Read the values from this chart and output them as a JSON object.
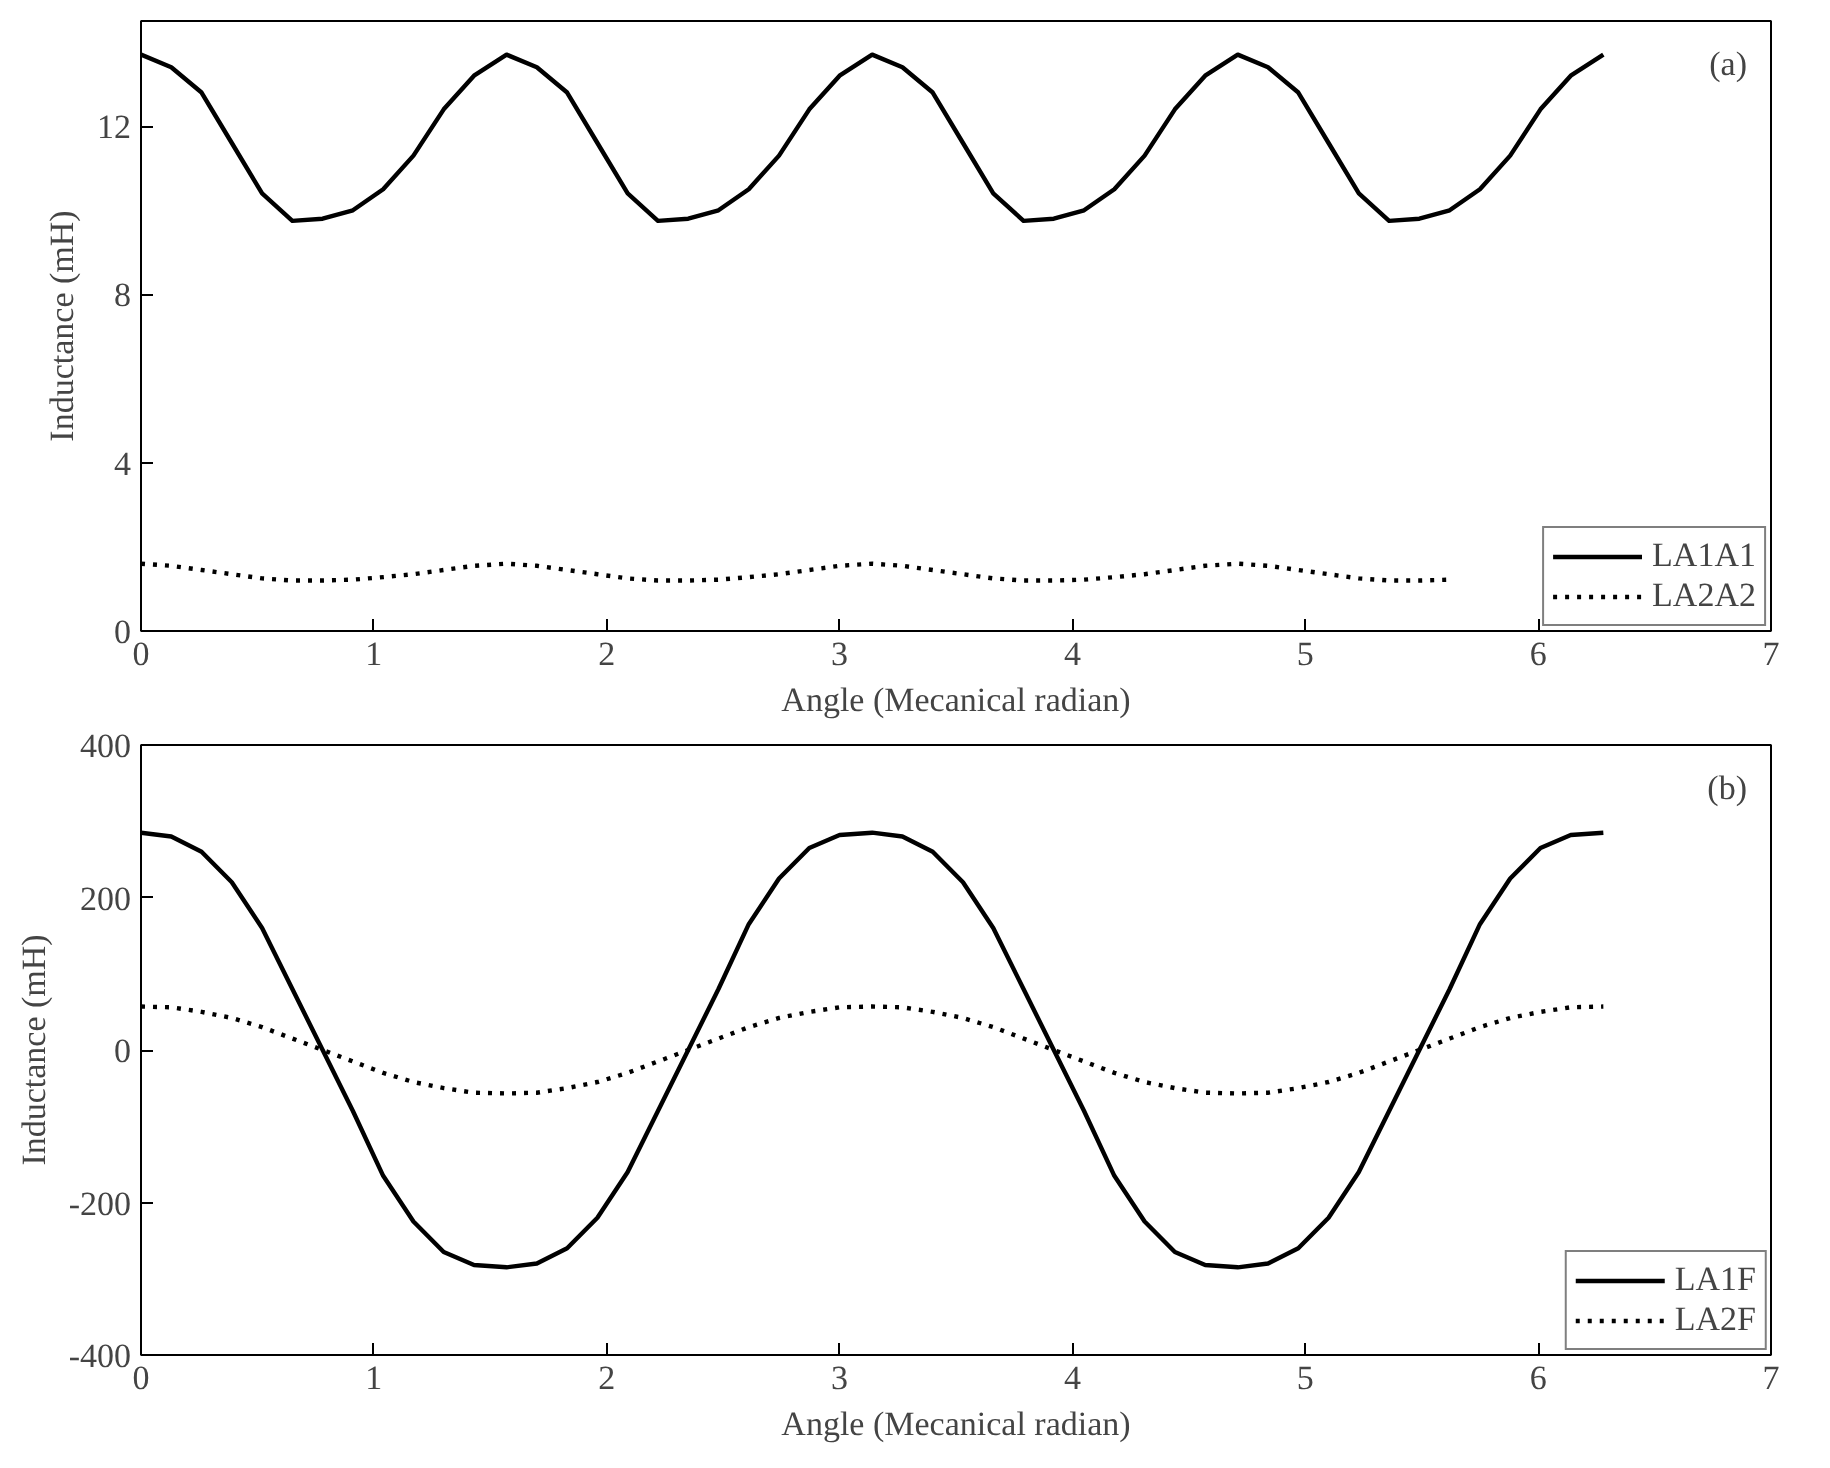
{
  "chart_data": [
    {
      "type": "line",
      "xlabel": "Angle (Mecanical radian)",
      "ylabel": "Inductance (mH)",
      "annotations": [
        "(a)"
      ],
      "x": [
        0,
        0.13,
        0.26,
        0.39,
        0.52,
        0.65,
        0.78,
        0.91,
        1.04,
        1.17,
        1.3,
        1.43,
        1.57,
        1.7,
        1.83,
        1.96,
        2.09,
        2.22,
        2.35,
        2.48,
        2.61,
        2.74,
        2.87,
        3.0,
        3.14,
        3.27,
        3.4,
        3.53,
        3.66,
        3.79,
        3.92,
        4.05,
        4.18,
        4.31,
        4.44,
        4.57,
        4.71,
        4.84,
        4.97,
        5.1,
        5.23,
        5.36,
        5.49,
        5.62,
        5.75,
        5.88,
        6.01,
        6.14,
        6.28
      ],
      "series": [
        {
          "name": "LA1A1",
          "color": "#000000",
          "line_style": "solid",
          "values": [
            13.7,
            13.4,
            12.8,
            11.6,
            10.4,
            9.75,
            9.8,
            10.0,
            10.5,
            11.3,
            12.4,
            13.2,
            13.7,
            13.4,
            12.8,
            11.6,
            10.4,
            9.75,
            9.8,
            10.0,
            10.5,
            11.3,
            12.4,
            13.2,
            13.7,
            13.4,
            12.8,
            11.6,
            10.4,
            9.75,
            9.8,
            10.0,
            10.5,
            11.3,
            12.4,
            13.2,
            13.7,
            13.4,
            12.8,
            11.6,
            10.4,
            9.75,
            9.8,
            10.0,
            10.5,
            11.3,
            12.4,
            13.2,
            13.7
          ]
        },
        {
          "name": "LA2A2",
          "color": "#000000",
          "line_style": "dotted",
          "values": [
            1.6,
            1.55,
            1.45,
            1.35,
            1.25,
            1.2,
            1.2,
            1.22,
            1.28,
            1.35,
            1.45,
            1.55,
            1.6,
            1.55,
            1.45,
            1.35,
            1.25,
            1.2,
            1.2,
            1.22,
            1.28,
            1.35,
            1.45,
            1.55,
            1.6,
            1.55,
            1.45,
            1.35,
            1.25,
            1.2,
            1.2,
            1.22,
            1.28,
            1.35,
            1.45,
            1.55,
            1.6,
            1.55,
            1.45,
            1.35,
            1.25,
            1.2,
            1.2,
            1.22,
            null,
            null,
            null,
            null,
            null
          ]
        }
      ],
      "xlim": [
        0,
        7
      ],
      "xticks": [
        0,
        1,
        2,
        3,
        4,
        5,
        6,
        7
      ],
      "ylim": [
        0,
        14.5
      ],
      "yticks": [
        0,
        4,
        8,
        12
      ],
      "grid": false,
      "legend": "bottom right"
    },
    {
      "type": "line",
      "xlabel": "Angle (Mecanical radian)",
      "ylabel": "Inductance (mH)",
      "annotations": [
        "(b)"
      ],
      "x": [
        0,
        0.13,
        0.26,
        0.39,
        0.52,
        0.65,
        0.78,
        0.91,
        1.04,
        1.17,
        1.3,
        1.43,
        1.57,
        1.7,
        1.83,
        1.96,
        2.09,
        2.22,
        2.35,
        2.48,
        2.61,
        2.74,
        2.87,
        3.0,
        3.14,
        3.27,
        3.4,
        3.53,
        3.66,
        3.79,
        3.92,
        4.05,
        4.18,
        4.31,
        4.44,
        4.57,
        4.71,
        4.84,
        4.97,
        5.1,
        5.23,
        5.36,
        5.49,
        5.62,
        5.75,
        5.88,
        6.01,
        6.14,
        6.28
      ],
      "series": [
        {
          "name": "LA1F",
          "color": "#000000",
          "line_style": "solid",
          "values": [
            285,
            280,
            260,
            220,
            160,
            80,
            0,
            -80,
            -165,
            -225,
            -265,
            -282,
            -285,
            -280,
            -260,
            -220,
            -160,
            -80,
            0,
            80,
            165,
            225,
            265,
            282,
            285,
            280,
            260,
            220,
            160,
            80,
            0,
            -80,
            -165,
            -225,
            -265,
            -282,
            -285,
            -280,
            -260,
            -220,
            -160,
            -80,
            0,
            80,
            165,
            225,
            265,
            282,
            285
          ]
        },
        {
          "name": "LA2F",
          "color": "#000000",
          "line_style": "dotted",
          "values": [
            57,
            56,
            50,
            42,
            30,
            15,
            0,
            -15,
            -30,
            -42,
            -50,
            -56,
            -57,
            -56,
            -50,
            -42,
            -30,
            -15,
            0,
            15,
            30,
            42,
            50,
            56,
            57,
            56,
            50,
            42,
            30,
            15,
            0,
            -15,
            -30,
            -42,
            -50,
            -56,
            -57,
            -56,
            -50,
            -42,
            -30,
            -15,
            0,
            15,
            30,
            42,
            50,
            56,
            57
          ]
        }
      ],
      "xlim": [
        0,
        7
      ],
      "xticks": [
        0,
        1,
        2,
        3,
        4,
        5,
        6,
        7
      ],
      "ylim": [
        -400,
        400
      ],
      "yticks": [
        -400,
        -200,
        0,
        200,
        400
      ],
      "grid": false,
      "legend": "bottom right"
    }
  ]
}
